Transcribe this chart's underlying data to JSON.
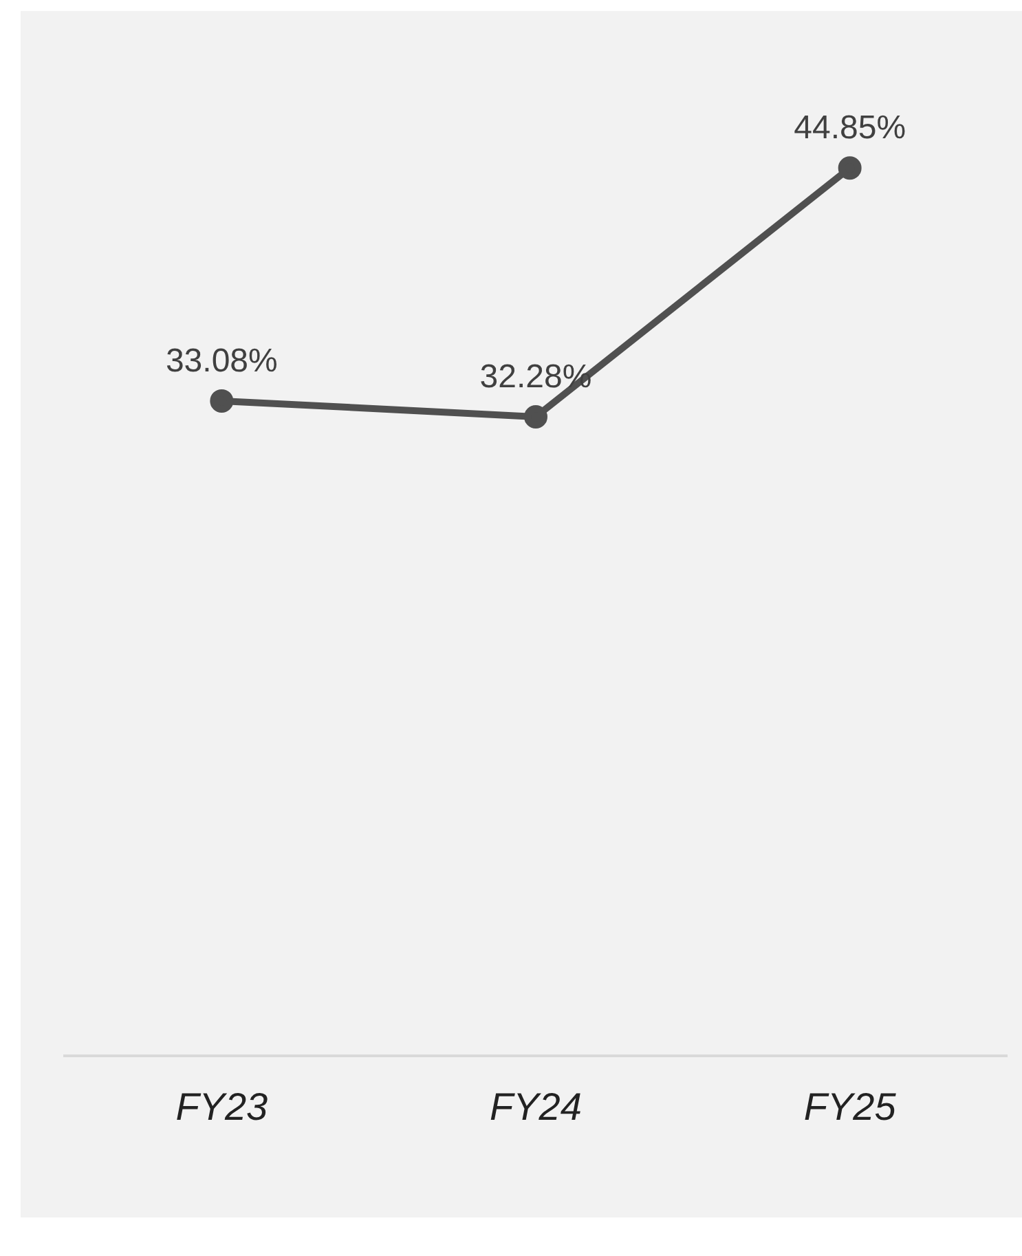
{
  "chart_data": {
    "type": "line",
    "categories": [
      "FY23",
      "FY24",
      "FY25"
    ],
    "series": [
      {
        "color": "#505050",
        "values": [
          33.08,
          32.28,
          44.85
        ],
        "value_labels": [
          "33.08%",
          "32.28%",
          "44.85%"
        ]
      }
    ],
    "grid": false,
    "legend": false,
    "marker": "circle",
    "line_style": "solid",
    "tick_labels": "x"
  }
}
